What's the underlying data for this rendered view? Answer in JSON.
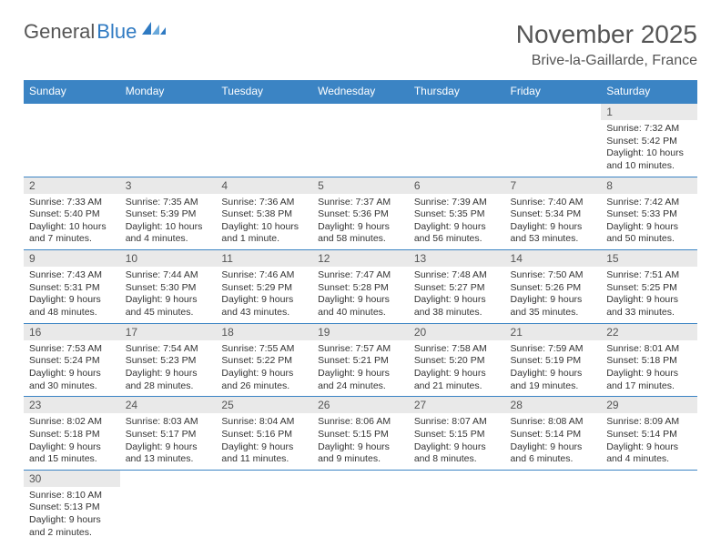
{
  "logo": {
    "text1": "General",
    "text2": "Blue"
  },
  "title": "November 2025",
  "location": "Brive-la-Gaillarde, France",
  "colors": {
    "header_bg": "#3b84c4",
    "header_text": "#ffffff",
    "daynum_bg": "#e9e9e9",
    "rule": "#3b84c4",
    "logo_blue": "#2f7ac2",
    "logo_gray": "#555555",
    "body_text": "#333333",
    "bg": "#ffffff"
  },
  "weekdays": [
    "Sunday",
    "Monday",
    "Tuesday",
    "Wednesday",
    "Thursday",
    "Friday",
    "Saturday"
  ],
  "weeks": [
    [
      null,
      null,
      null,
      null,
      null,
      null,
      {
        "n": "1",
        "sr": "7:32 AM",
        "ss": "5:42 PM",
        "dl": "10 hours and 10 minutes."
      }
    ],
    [
      {
        "n": "2",
        "sr": "7:33 AM",
        "ss": "5:40 PM",
        "dl": "10 hours and 7 minutes."
      },
      {
        "n": "3",
        "sr": "7:35 AM",
        "ss": "5:39 PM",
        "dl": "10 hours and 4 minutes."
      },
      {
        "n": "4",
        "sr": "7:36 AM",
        "ss": "5:38 PM",
        "dl": "10 hours and 1 minute."
      },
      {
        "n": "5",
        "sr": "7:37 AM",
        "ss": "5:36 PM",
        "dl": "9 hours and 58 minutes."
      },
      {
        "n": "6",
        "sr": "7:39 AM",
        "ss": "5:35 PM",
        "dl": "9 hours and 56 minutes."
      },
      {
        "n": "7",
        "sr": "7:40 AM",
        "ss": "5:34 PM",
        "dl": "9 hours and 53 minutes."
      },
      {
        "n": "8",
        "sr": "7:42 AM",
        "ss": "5:33 PM",
        "dl": "9 hours and 50 minutes."
      }
    ],
    [
      {
        "n": "9",
        "sr": "7:43 AM",
        "ss": "5:31 PM",
        "dl": "9 hours and 48 minutes."
      },
      {
        "n": "10",
        "sr": "7:44 AM",
        "ss": "5:30 PM",
        "dl": "9 hours and 45 minutes."
      },
      {
        "n": "11",
        "sr": "7:46 AM",
        "ss": "5:29 PM",
        "dl": "9 hours and 43 minutes."
      },
      {
        "n": "12",
        "sr": "7:47 AM",
        "ss": "5:28 PM",
        "dl": "9 hours and 40 minutes."
      },
      {
        "n": "13",
        "sr": "7:48 AM",
        "ss": "5:27 PM",
        "dl": "9 hours and 38 minutes."
      },
      {
        "n": "14",
        "sr": "7:50 AM",
        "ss": "5:26 PM",
        "dl": "9 hours and 35 minutes."
      },
      {
        "n": "15",
        "sr": "7:51 AM",
        "ss": "5:25 PM",
        "dl": "9 hours and 33 minutes."
      }
    ],
    [
      {
        "n": "16",
        "sr": "7:53 AM",
        "ss": "5:24 PM",
        "dl": "9 hours and 30 minutes."
      },
      {
        "n": "17",
        "sr": "7:54 AM",
        "ss": "5:23 PM",
        "dl": "9 hours and 28 minutes."
      },
      {
        "n": "18",
        "sr": "7:55 AM",
        "ss": "5:22 PM",
        "dl": "9 hours and 26 minutes."
      },
      {
        "n": "19",
        "sr": "7:57 AM",
        "ss": "5:21 PM",
        "dl": "9 hours and 24 minutes."
      },
      {
        "n": "20",
        "sr": "7:58 AM",
        "ss": "5:20 PM",
        "dl": "9 hours and 21 minutes."
      },
      {
        "n": "21",
        "sr": "7:59 AM",
        "ss": "5:19 PM",
        "dl": "9 hours and 19 minutes."
      },
      {
        "n": "22",
        "sr": "8:01 AM",
        "ss": "5:18 PM",
        "dl": "9 hours and 17 minutes."
      }
    ],
    [
      {
        "n": "23",
        "sr": "8:02 AM",
        "ss": "5:18 PM",
        "dl": "9 hours and 15 minutes."
      },
      {
        "n": "24",
        "sr": "8:03 AM",
        "ss": "5:17 PM",
        "dl": "9 hours and 13 minutes."
      },
      {
        "n": "25",
        "sr": "8:04 AM",
        "ss": "5:16 PM",
        "dl": "9 hours and 11 minutes."
      },
      {
        "n": "26",
        "sr": "8:06 AM",
        "ss": "5:15 PM",
        "dl": "9 hours and 9 minutes."
      },
      {
        "n": "27",
        "sr": "8:07 AM",
        "ss": "5:15 PM",
        "dl": "9 hours and 8 minutes."
      },
      {
        "n": "28",
        "sr": "8:08 AM",
        "ss": "5:14 PM",
        "dl": "9 hours and 6 minutes."
      },
      {
        "n": "29",
        "sr": "8:09 AM",
        "ss": "5:14 PM",
        "dl": "9 hours and 4 minutes."
      }
    ],
    [
      {
        "n": "30",
        "sr": "8:10 AM",
        "ss": "5:13 PM",
        "dl": "9 hours and 2 minutes."
      },
      null,
      null,
      null,
      null,
      null,
      null
    ]
  ],
  "labels": {
    "sunrise": "Sunrise: ",
    "sunset": "Sunset: ",
    "daylight": "Daylight: "
  }
}
